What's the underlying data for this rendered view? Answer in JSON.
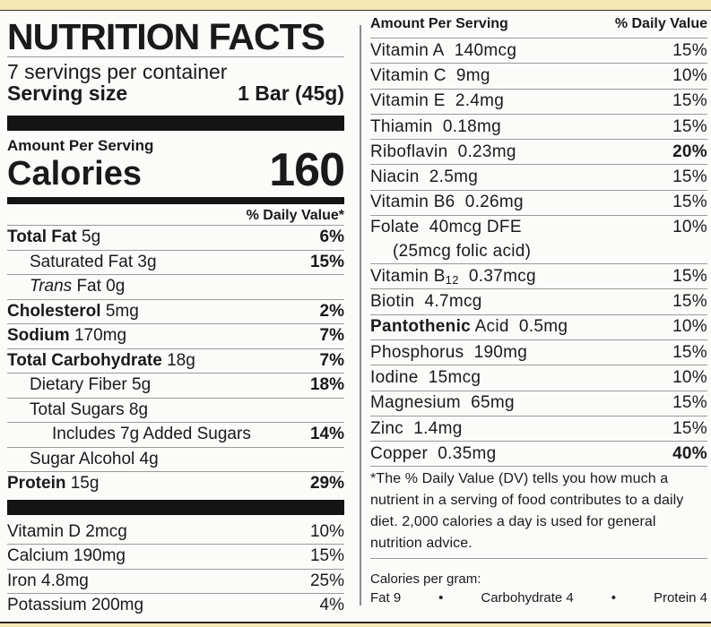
{
  "label": {
    "title": "NUTRITION FACTS",
    "servings_per_container": "7 servings per container",
    "serving_size_label": "Serving size",
    "serving_size_value": "1 Bar (45g)",
    "amount_per_serving": "Amount Per Serving",
    "calories_label": "Calories",
    "calories_value": "160",
    "daily_value_header": "% Daily Value*"
  },
  "nutrients": [
    {
      "name": "Total Fat",
      "amount": "5g",
      "dv": "6%"
    },
    {
      "name": "Saturated Fat",
      "amount": "3g",
      "dv": "15%"
    },
    {
      "name": "Trans",
      "name_suffix": "Fat 0g",
      "dv": ""
    },
    {
      "name": "Cholesterol",
      "amount": "5mg",
      "dv": "2%"
    },
    {
      "name": "Sodium",
      "amount": "170mg",
      "dv": "7%"
    },
    {
      "name": "Total Carbohydrate",
      "amount": "18g",
      "dv": "7%"
    },
    {
      "name": "Dietary Fiber",
      "amount": "5g",
      "dv": "18%"
    },
    {
      "name": "Total Sugars",
      "amount": "8g",
      "dv": ""
    },
    {
      "name": "Includes 7g Added Sugars",
      "amount": "",
      "dv": "14%"
    },
    {
      "name": "Sugar Alcohol",
      "amount": "4g",
      "dv": ""
    },
    {
      "name": "Protein",
      "amount": "15g",
      "dv": "29%"
    }
  ],
  "minerals_left": [
    {
      "name": "Vitamin D",
      "amount": "2mcg",
      "dv": "10%"
    },
    {
      "name": "Calcium",
      "amount": "190mg",
      "dv": "15%"
    },
    {
      "name": "Iron",
      "amount": "4.8mg",
      "dv": "25%"
    },
    {
      "name": "Potassium",
      "amount": "200mg",
      "dv": "4%"
    }
  ],
  "right": {
    "header_amount": "Amount Per Serving",
    "header_dv": "% Daily Value",
    "rows": [
      {
        "name": "Vitamin A",
        "amount": "140mcg",
        "dv": "15%"
      },
      {
        "name": "Vitamin C",
        "amount": "9mg",
        "dv": "10%"
      },
      {
        "name": "Vitamin E",
        "amount": "2.4mg",
        "dv": "15%"
      },
      {
        "name": "Thiamin",
        "amount": "0.18mg",
        "dv": "15%"
      },
      {
        "name": "Riboflavin",
        "amount": "0.23mg",
        "dv": "20%"
      },
      {
        "name": "Niacin",
        "amount": "2.5mg",
        "dv": "15%"
      },
      {
        "name": "Vitamin B6",
        "amount": "0.26mg",
        "dv": "15%"
      },
      {
        "name": "Folate",
        "amount": "40mcg DFE",
        "sub": "(25mcg folic acid)",
        "dv": "10%"
      },
      {
        "name": "Vitamin B",
        "subscript": "12",
        "amount": "0.37mcg",
        "dv": "15%"
      },
      {
        "name": "Biotin",
        "amount": "4.7mcg",
        "dv": "15%"
      },
      {
        "name": "Pantothenic",
        "name_suffix": "Acid",
        "amount": "0.5mg",
        "dv": "10%"
      },
      {
        "name": "Phosphorus",
        "amount": "190mg",
        "dv": "15%"
      },
      {
        "name": "Iodine",
        "amount": "15mcg",
        "dv": "10%"
      },
      {
        "name": "Magnesium",
        "amount": "65mg",
        "dv": "15%"
      },
      {
        "name": "Zinc",
        "amount": "1.4mg",
        "dv": "15%"
      },
      {
        "name": "Copper",
        "amount": "0.35mg",
        "dv": "40%"
      }
    ],
    "footnote": "*The % Daily Value (DV) tells you how much a nutrient in a serving of food contributes to a daily diet. 2,000 calories a day is used for general nutrition advice.",
    "calories_per_gram_label": "Calories per gram:",
    "cpg_fat": "Fat 9",
    "cpg_carb": "Carbohydrate 4",
    "cpg_protein": "Protein 4",
    "bullet": "•"
  },
  "colors": {
    "background": "#f7e7b4",
    "panel": "#fbfbf9",
    "ink": "#1a1a1a",
    "rule": "#9a9a9a"
  }
}
